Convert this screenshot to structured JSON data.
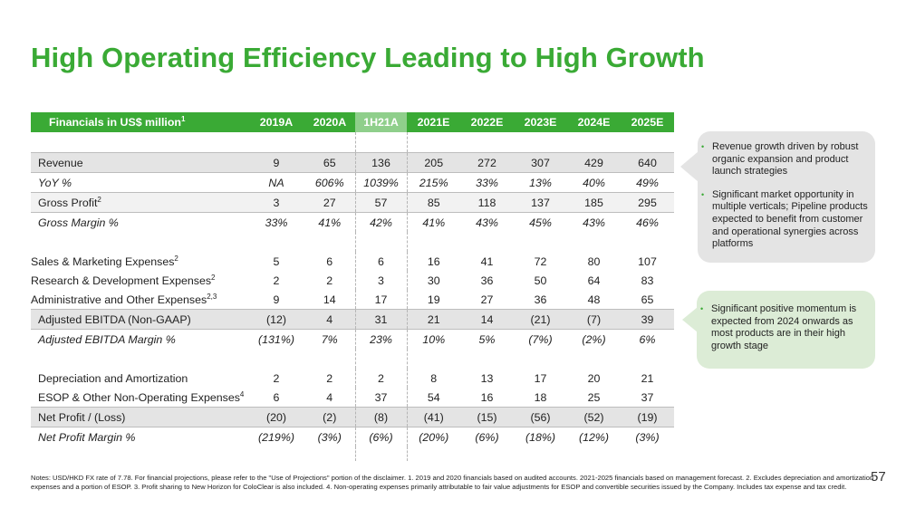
{
  "title": "High Operating Efficiency Leading to High Growth",
  "page_number": "57",
  "table": {
    "header_label": "Financials in US$ million",
    "header_label_sup": "1",
    "columns": [
      "2019A",
      "2020A",
      "1H21A",
      "2021E",
      "2022E",
      "2023E",
      "2024E",
      "2025E"
    ],
    "highlight_column": "1H21A",
    "rows": [
      {
        "label": "Revenue",
        "sup": "",
        "values": [
          "9",
          "65",
          "136",
          "205",
          "272",
          "307",
          "429",
          "640"
        ]
      },
      {
        "label": "YoY %",
        "sup": "",
        "values": [
          "NA",
          "606%",
          "1039%",
          "215%",
          "33%",
          "13%",
          "40%",
          "49%"
        ]
      },
      {
        "label": "Gross Profit",
        "sup": "2",
        "values": [
          "3",
          "27",
          "57",
          "85",
          "118",
          "137",
          "185",
          "295"
        ]
      },
      {
        "label": "Gross Margin %",
        "sup": "",
        "values": [
          "33%",
          "41%",
          "42%",
          "41%",
          "43%",
          "45%",
          "43%",
          "46%"
        ]
      },
      {
        "label": "Sales & Marketing Expenses",
        "sup": "2",
        "values": [
          "5",
          "6",
          "6",
          "16",
          "41",
          "72",
          "80",
          "107"
        ]
      },
      {
        "label": "Research & Development Expenses",
        "sup": "2",
        "values": [
          "2",
          "2",
          "3",
          "30",
          "36",
          "50",
          "64",
          "83"
        ]
      },
      {
        "label": "Administrative and Other Expenses",
        "sup": "2,3",
        "values": [
          "9",
          "14",
          "17",
          "19",
          "27",
          "36",
          "48",
          "65"
        ]
      },
      {
        "label": "Adjusted EBITDA (Non-GAAP)",
        "sup": "",
        "values": [
          "(12)",
          "4",
          "31",
          "21",
          "14",
          "(21)",
          "(7)",
          "39"
        ]
      },
      {
        "label": "Adjusted EBITDA Margin %",
        "sup": "",
        "values": [
          "(131%)",
          "7%",
          "23%",
          "10%",
          "5%",
          "(7%)",
          "(2%)",
          "6%"
        ]
      },
      {
        "label": "Depreciation and Amortization",
        "sup": "",
        "values": [
          "2",
          "2",
          "2",
          "8",
          "13",
          "17",
          "20",
          "21"
        ]
      },
      {
        "label": "ESOP & Other Non-Operating Expenses",
        "sup": "4",
        "values": [
          "6",
          "4",
          "37",
          "54",
          "16",
          "18",
          "25",
          "37"
        ]
      },
      {
        "label": "Net Profit / (Loss)",
        "sup": "",
        "values": [
          "(20)",
          "(2)",
          "(8)",
          "(41)",
          "(15)",
          "(56)",
          "(52)",
          "(19)"
        ]
      },
      {
        "label": "Net Profit Margin %",
        "sup": "",
        "values": [
          "(219%)",
          "(3%)",
          "(6%)",
          "(20%)",
          "(6%)",
          "(18%)",
          "(12%)",
          "(3%)"
        ]
      }
    ]
  },
  "callouts": {
    "grey": [
      "Revenue growth driven by robust organic expansion and product launch strategies",
      "Significant market opportunity in multiple verticals; Pipeline products expected to benefit from customer and operational synergies across platforms"
    ],
    "green": [
      "Significant positive momentum is expected from 2024 onwards as most products are in their high growth stage"
    ]
  },
  "notes": "Notes: USD/HKD FX rate of 7.78. For financial projections, please refer to the \"Use of Projections\" portion of the disclaimer. 1. 2019 and 2020 financials based on audited accounts. 2021-2025 financials based on management forecast. 2. Excludes depreciation and amortization expenses and a portion of ESOP. 3. Profit sharing to New Horizon for ColoClear is also included. 4. Non-operating expenses primarily attributable to fair value adjustments for ESOP and convertible securities issued by the Company. Includes tax expense and tax credit.",
  "colors": {
    "brand_green": "#3aaa35",
    "highlight_header": "#8fcf8b",
    "row_shade": "#e4e4e4",
    "callout_grey": "#e4e4e4",
    "callout_green": "#dcecd6"
  }
}
